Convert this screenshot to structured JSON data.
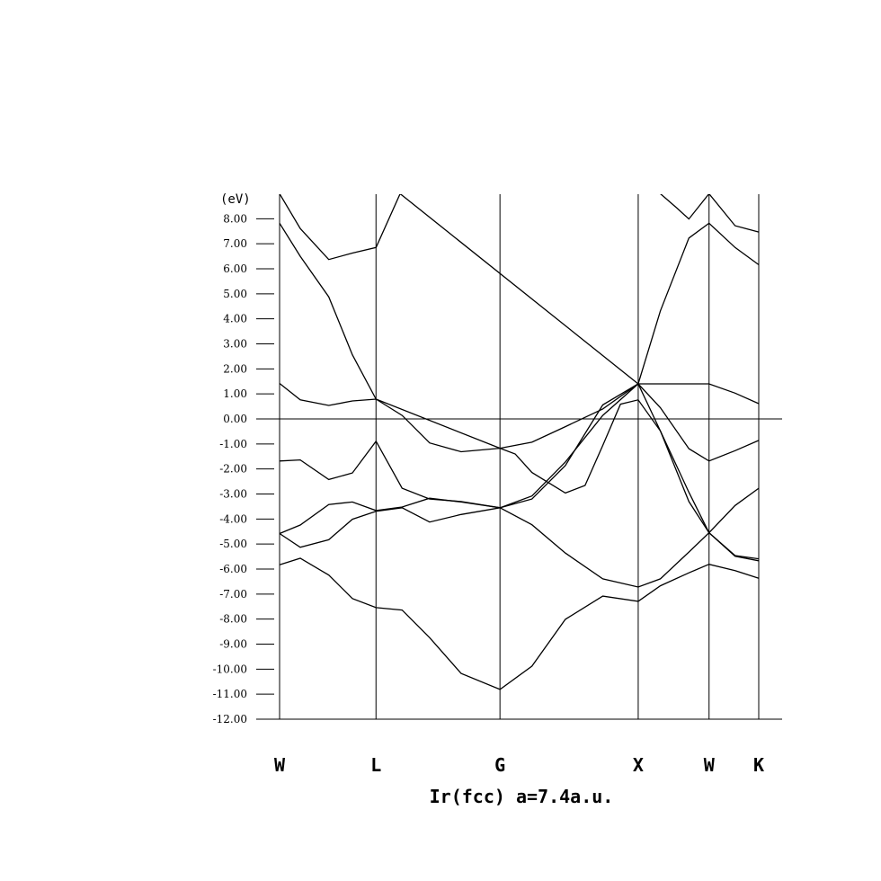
{
  "chart_data": {
    "type": "line",
    "title": "Ir(fcc) a=7.4a.u.",
    "ylabel": "(eV)",
    "xlabel": "",
    "ylim": [
      -12,
      9
    ],
    "yticks": [
      8,
      7,
      6,
      5,
      4,
      3,
      2,
      1,
      0,
      -1,
      -2,
      -3,
      -4,
      -5,
      -6,
      -7,
      -8,
      -9,
      -10,
      -11,
      -12
    ],
    "ytick_labels": [
      "8.00",
      "7.00",
      "6.00",
      "5.00",
      "4.00",
      "3.00",
      "2.00",
      "1.00",
      "0.00",
      "-1.00",
      "-2.00",
      "-3.00",
      "-4.00",
      "-5.00",
      "-6.00",
      "-7.00",
      "-8.00",
      "-9.00",
      "-10.00",
      "-11.00",
      "-12.00"
    ],
    "kpoints": [
      {
        "label": "W",
        "x": 0
      },
      {
        "label": "L",
        "x": 1.96
      },
      {
        "label": "G",
        "x": 4.48
      },
      {
        "label": "X",
        "x": 7.29
      },
      {
        "label": "W",
        "x": 8.73
      },
      {
        "label": "K",
        "x": 9.74
      }
    ],
    "xlim": [
      0,
      9.74
    ],
    "grid": false,
    "zero_line": 0,
    "series": [
      {
        "x": [
          0,
          0.42,
          1.0,
          1.48,
          1.96,
          2.49,
          3.05,
          3.69,
          4.48,
          5.13,
          5.81,
          6.57,
          7.29,
          7.74,
          8.32,
          8.73,
          9.26,
          9.74
        ],
        "values": [
          -5.83,
          -5.57,
          -6.24,
          -7.18,
          -7.54,
          -7.64,
          -8.74,
          -10.17,
          -10.81,
          -9.88,
          -8.01,
          -7.08,
          -7.29,
          -6.67,
          -6.15,
          -5.81,
          -6.06,
          -6.37
        ]
      },
      {
        "x": [
          0,
          0.42,
          1.0,
          1.48,
          1.96,
          2.49,
          3.05,
          3.69,
          4.48,
          5.13,
          5.81,
          6.57,
          7.29,
          7.74,
          8.32,
          8.73,
          9.26,
          9.74
        ],
        "values": [
          -4.58,
          -5.13,
          -4.83,
          -4.01,
          -3.69,
          -3.55,
          -4.12,
          -3.82,
          -3.55,
          -4.23,
          -5.36,
          -6.39,
          -6.72,
          -6.39,
          -5.32,
          -4.55,
          -5.49,
          -5.67
        ]
      },
      {
        "x": [
          0,
          0.42,
          1.0,
          1.48,
          1.96,
          2.49,
          3.05,
          3.69,
          4.48,
          5.13,
          5.81,
          6.57,
          7.29,
          7.74,
          8.32,
          8.73,
          9.26,
          9.74
        ],
        "values": [
          -4.58,
          -4.24,
          -3.42,
          -3.32,
          -3.66,
          -3.52,
          -3.17,
          -3.32,
          -3.55,
          -3.08,
          -1.72,
          0.14,
          1.4,
          -0.48,
          -2.93,
          -4.55,
          -3.46,
          -2.77
        ]
      },
      {
        "x": [
          0,
          0.42,
          1.0,
          1.48,
          1.96,
          2.49,
          3.05,
          3.69,
          4.48,
          5.13,
          5.81,
          6.57,
          7.29,
          7.74,
          8.32,
          8.73,
          9.26,
          9.74
        ],
        "values": [
          -1.68,
          -1.64,
          -2.42,
          -2.16,
          -0.89,
          -2.77,
          -3.2,
          -3.3,
          -3.55,
          -3.2,
          -1.86,
          0.56,
          1.4,
          0.45,
          -1.19,
          -1.68,
          -1.27,
          -0.86
        ]
      },
      {
        "x": [
          0,
          0.42,
          1.0,
          1.48,
          1.96,
          2.49,
          3.05,
          3.69,
          4.48,
          5.13,
          5.81,
          6.57,
          7.29,
          7.74,
          8.32,
          8.73,
          9.26,
          9.74
        ],
        "values": [
          1.42,
          0.76,
          0.54,
          0.72,
          0.79,
          0.14,
          -0.96,
          -1.31,
          -1.17,
          -0.93,
          -0.31,
          0.4,
          1.4,
          1.4,
          1.4,
          1.4,
          1.03,
          0.61
        ]
      },
      {
        "x": [
          0,
          0.42,
          1.0,
          1.48,
          1.96,
          4.48,
          4.79,
          5.13,
          5.81,
          6.21,
          6.57,
          6.93,
          7.29,
          7.74,
          8.32,
          8.73,
          9.26,
          9.74
        ],
        "values": [
          7.82,
          6.5,
          4.88,
          2.56,
          0.79,
          -1.17,
          -1.4,
          -2.14,
          -2.96,
          -2.66,
          -1.06,
          0.59,
          0.76,
          -0.48,
          -3.3,
          -4.55,
          -5.46,
          -5.59
        ]
      },
      {
        "x": [
          0,
          0.42,
          1.0,
          1.48,
          1.96,
          2.45,
          7.29,
          7.74,
          8.32,
          8.73,
          9.26,
          9.74
        ],
        "values": [
          9.0,
          7.61,
          6.37,
          6.63,
          6.85,
          9.0,
          1.4,
          4.32,
          7.23,
          7.82,
          6.85,
          6.16
        ]
      },
      {
        "x": [
          7.74,
          8.08,
          8.32,
          8.73,
          9.26,
          9.74
        ],
        "values": [
          9.0,
          8.42,
          7.99,
          9.0,
          7.72,
          7.47
        ]
      }
    ]
  }
}
